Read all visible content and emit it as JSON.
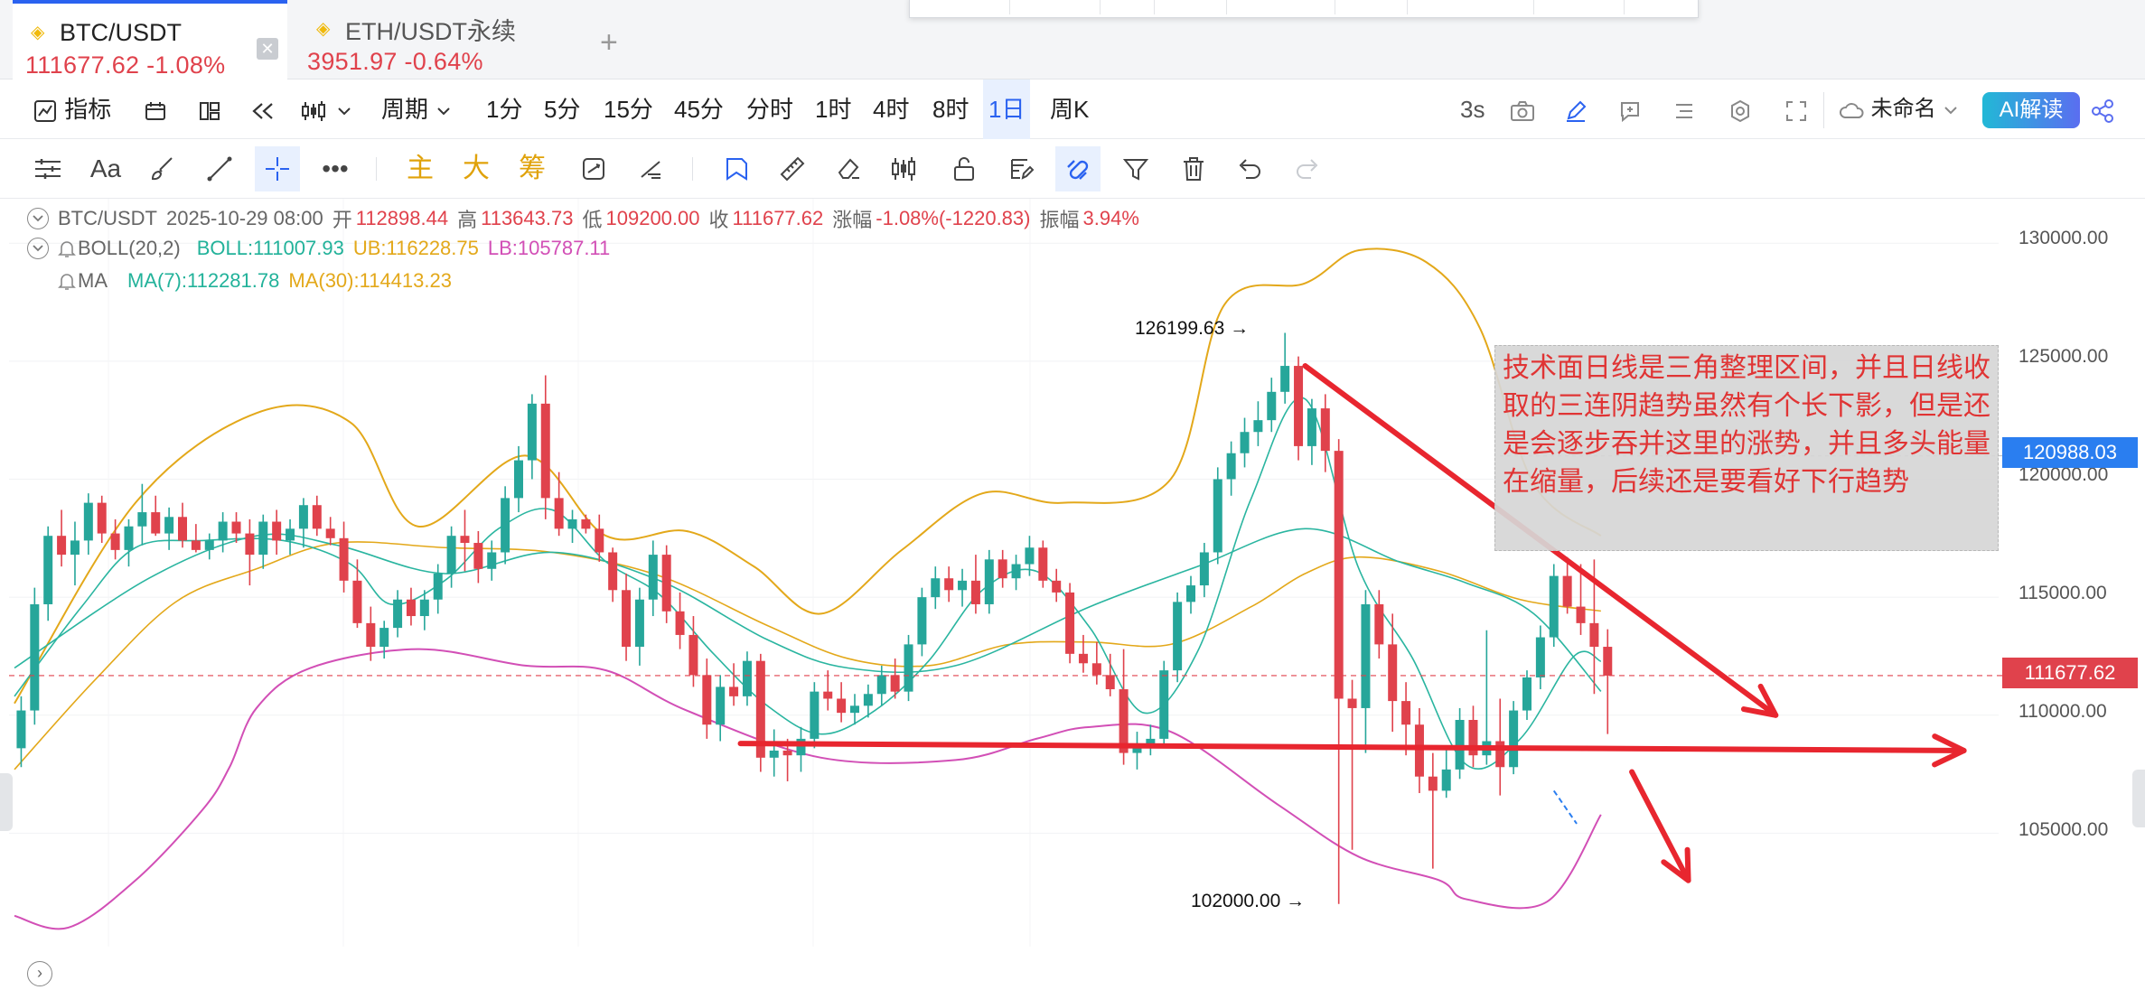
{
  "tabs": [
    {
      "symbol": "BTC/USDT",
      "quote": "111677.62 -1.08%",
      "active": true
    },
    {
      "symbol": "ETH/USDT永续",
      "quote": "3951.97 -0.64%",
      "active": false
    }
  ],
  "toolbar1": {
    "indicator": "指标",
    "period": "周期",
    "intervals": [
      "1分",
      "5分",
      "15分",
      "45分",
      "分时",
      "1时",
      "4时",
      "8时",
      "1日",
      "周K"
    ],
    "active_interval": "1日",
    "refresh": "3s",
    "layout_name": "未命名",
    "ai_button": "AI解读"
  },
  "toolbar2": {
    "text_tools": [
      "主",
      "大",
      "筹"
    ]
  },
  "legend": {
    "symbol": "BTC/USDT",
    "datetime": "2025-10-29 08:00",
    "open_label": "开",
    "open": "112898.44",
    "high_label": "高",
    "high": "113643.73",
    "low_label": "低",
    "low": "109200.00",
    "close_label": "收",
    "close": "111677.62",
    "change_label": "涨幅",
    "change": "-1.08%(-1220.83)",
    "amp_label": "振幅",
    "amp": "3.94%",
    "boll_name": "BOLL(20,2)",
    "boll_mid": "BOLL:111007.93",
    "boll_ub": "UB:116228.75",
    "boll_lb": "LB:105787.11",
    "ma_name": "MA",
    "ma7": "MA(7):112281.78",
    "ma30": "MA(30):114413.23"
  },
  "price_axis": {
    "labels": [
      "130000.00",
      "125000.00",
      "120000.00",
      "115000.00",
      "110000.00",
      "105000.00"
    ],
    "crosshair_price": "120988.03",
    "last_price": "111677.62"
  },
  "annotations": {
    "high_label": "126199.63",
    "low_label": "102000.00",
    "note": "技术面日线是三角整理区间，并且日线收取的三连阴趋势虽然有个长下影，但是还是会逐步吞并这里的涨势，并且多头能量在缩量，后续还是要看好下行趋势"
  },
  "colors": {
    "up": "#26a69a",
    "down": "#e0424c",
    "boll_upper": "#e3a81a",
    "boll_mid": "#2ab5a0",
    "boll_lower": "#d24fb6",
    "drawing": "#e8262f",
    "accent": "#2a62f0",
    "crosshair_tag": "#2a7ef0"
  },
  "chart_data": {
    "type": "candlestick",
    "y_range": [
      100500,
      131500
    ],
    "candles": [
      {
        "o": 108600,
        "h": 110800,
        "l": 107800,
        "c": 110200
      },
      {
        "o": 110200,
        "h": 115400,
        "l": 109600,
        "c": 114700
      },
      {
        "o": 114700,
        "h": 118000,
        "l": 114000,
        "c": 117600
      },
      {
        "o": 117600,
        "h": 118700,
        "l": 116300,
        "c": 116800
      },
      {
        "o": 116800,
        "h": 118200,
        "l": 115500,
        "c": 117400
      },
      {
        "o": 117400,
        "h": 119400,
        "l": 116800,
        "c": 119000
      },
      {
        "o": 119000,
        "h": 119300,
        "l": 117300,
        "c": 117700
      },
      {
        "o": 117700,
        "h": 118300,
        "l": 116600,
        "c": 117000
      },
      {
        "o": 117000,
        "h": 118300,
        "l": 116300,
        "c": 118000
      },
      {
        "o": 118000,
        "h": 119800,
        "l": 117200,
        "c": 118600
      },
      {
        "o": 118600,
        "h": 119300,
        "l": 117600,
        "c": 117700
      },
      {
        "o": 117700,
        "h": 118800,
        "l": 117000,
        "c": 118400
      },
      {
        "o": 118400,
        "h": 119000,
        "l": 117100,
        "c": 117400
      },
      {
        "o": 117400,
        "h": 118100,
        "l": 116900,
        "c": 117000
      },
      {
        "o": 117000,
        "h": 117700,
        "l": 116600,
        "c": 117400
      },
      {
        "o": 117400,
        "h": 118600,
        "l": 116900,
        "c": 118200
      },
      {
        "o": 118200,
        "h": 118600,
        "l": 117300,
        "c": 117700
      },
      {
        "o": 117700,
        "h": 118300,
        "l": 115500,
        "c": 116800
      },
      {
        "o": 116800,
        "h": 118500,
        "l": 116200,
        "c": 118200
      },
      {
        "o": 118200,
        "h": 118700,
        "l": 116800,
        "c": 117400
      },
      {
        "o": 117400,
        "h": 118300,
        "l": 116800,
        "c": 117900
      },
      {
        "o": 117900,
        "h": 119200,
        "l": 117100,
        "c": 118900
      },
      {
        "o": 118900,
        "h": 119300,
        "l": 117600,
        "c": 117900
      },
      {
        "o": 117900,
        "h": 118400,
        "l": 117200,
        "c": 117500
      },
      {
        "o": 117500,
        "h": 118200,
        "l": 115200,
        "c": 115700
      },
      {
        "o": 115700,
        "h": 116600,
        "l": 113700,
        "c": 113900
      },
      {
        "o": 113900,
        "h": 114600,
        "l": 112300,
        "c": 112900
      },
      {
        "o": 112900,
        "h": 114000,
        "l": 112400,
        "c": 113700
      },
      {
        "o": 113700,
        "h": 115300,
        "l": 113300,
        "c": 114900
      },
      {
        "o": 114900,
        "h": 115400,
        "l": 113800,
        "c": 114200
      },
      {
        "o": 114200,
        "h": 115300,
        "l": 113600,
        "c": 114900
      },
      {
        "o": 114900,
        "h": 116400,
        "l": 114300,
        "c": 116000
      },
      {
        "o": 116000,
        "h": 118000,
        "l": 115400,
        "c": 117600
      },
      {
        "o": 117600,
        "h": 118700,
        "l": 116100,
        "c": 117300
      },
      {
        "o": 117300,
        "h": 117800,
        "l": 115600,
        "c": 116200
      },
      {
        "o": 116200,
        "h": 117400,
        "l": 115700,
        "c": 116900
      },
      {
        "o": 116900,
        "h": 119700,
        "l": 116400,
        "c": 119200
      },
      {
        "o": 119200,
        "h": 121400,
        "l": 118600,
        "c": 120800
      },
      {
        "o": 120800,
        "h": 123600,
        "l": 120000,
        "c": 123200
      },
      {
        "o": 123200,
        "h": 124400,
        "l": 118300,
        "c": 119200
      },
      {
        "o": 119200,
        "h": 120300,
        "l": 117600,
        "c": 117900
      },
      {
        "o": 117900,
        "h": 118700,
        "l": 117300,
        "c": 118300
      },
      {
        "o": 118300,
        "h": 118500,
        "l": 117700,
        "c": 117900
      },
      {
        "o": 117900,
        "h": 118500,
        "l": 116500,
        "c": 116900
      },
      {
        "o": 116900,
        "h": 117100,
        "l": 114800,
        "c": 115300
      },
      {
        "o": 115300,
        "h": 116000,
        "l": 112300,
        "c": 112900
      },
      {
        "o": 112900,
        "h": 115400,
        "l": 112100,
        "c": 114900
      },
      {
        "o": 114900,
        "h": 117400,
        "l": 114200,
        "c": 116800
      },
      {
        "o": 116800,
        "h": 117200,
        "l": 113900,
        "c": 114400
      },
      {
        "o": 114400,
        "h": 115200,
        "l": 112800,
        "c": 113400
      },
      {
        "o": 113400,
        "h": 114200,
        "l": 111200,
        "c": 111700
      },
      {
        "o": 111700,
        "h": 112400,
        "l": 109000,
        "c": 109600
      },
      {
        "o": 109600,
        "h": 111700,
        "l": 108900,
        "c": 111200
      },
      {
        "o": 111200,
        "h": 112200,
        "l": 110400,
        "c": 110800
      },
      {
        "o": 110800,
        "h": 112700,
        "l": 110400,
        "c": 112300
      },
      {
        "o": 112300,
        "h": 112600,
        "l": 107600,
        "c": 108200
      },
      {
        "o": 108200,
        "h": 109400,
        "l": 107400,
        "c": 108500
      },
      {
        "o": 108500,
        "h": 109000,
        "l": 107200,
        "c": 108300
      },
      {
        "o": 108300,
        "h": 109500,
        "l": 107600,
        "c": 109000
      },
      {
        "o": 109000,
        "h": 111400,
        "l": 108600,
        "c": 111000
      },
      {
        "o": 111000,
        "h": 111900,
        "l": 110200,
        "c": 110700
      },
      {
        "o": 110700,
        "h": 111400,
        "l": 109700,
        "c": 110100
      },
      {
        "o": 110100,
        "h": 110900,
        "l": 109600,
        "c": 110400
      },
      {
        "o": 110400,
        "h": 111300,
        "l": 109900,
        "c": 110900
      },
      {
        "o": 110900,
        "h": 112100,
        "l": 110400,
        "c": 111700
      },
      {
        "o": 111700,
        "h": 112400,
        "l": 110700,
        "c": 111000
      },
      {
        "o": 111000,
        "h": 113400,
        "l": 110600,
        "c": 113000
      },
      {
        "o": 113000,
        "h": 115400,
        "l": 112500,
        "c": 115000
      },
      {
        "o": 115000,
        "h": 116300,
        "l": 114500,
        "c": 115800
      },
      {
        "o": 115800,
        "h": 116300,
        "l": 114800,
        "c": 115300
      },
      {
        "o": 115300,
        "h": 116200,
        "l": 114600,
        "c": 115700
      },
      {
        "o": 115700,
        "h": 116800,
        "l": 114300,
        "c": 114700
      },
      {
        "o": 114700,
        "h": 117000,
        "l": 114300,
        "c": 116600
      },
      {
        "o": 116600,
        "h": 117000,
        "l": 115400,
        "c": 115800
      },
      {
        "o": 115800,
        "h": 116800,
        "l": 115300,
        "c": 116400
      },
      {
        "o": 116400,
        "h": 117600,
        "l": 115900,
        "c": 117100
      },
      {
        "o": 117100,
        "h": 117400,
        "l": 115400,
        "c": 115700
      },
      {
        "o": 115700,
        "h": 116200,
        "l": 114800,
        "c": 115200
      },
      {
        "o": 115200,
        "h": 115600,
        "l": 112200,
        "c": 112600
      },
      {
        "o": 112600,
        "h": 113400,
        "l": 111800,
        "c": 112200
      },
      {
        "o": 112200,
        "h": 113100,
        "l": 111300,
        "c": 111700
      },
      {
        "o": 111700,
        "h": 112600,
        "l": 110800,
        "c": 111100
      },
      {
        "o": 111100,
        "h": 112800,
        "l": 107900,
        "c": 108400
      },
      {
        "o": 108400,
        "h": 109300,
        "l": 107700,
        "c": 108800
      },
      {
        "o": 108800,
        "h": 109600,
        "l": 108300,
        "c": 109000
      },
      {
        "o": 109000,
        "h": 112300,
        "l": 108600,
        "c": 111900
      },
      {
        "o": 111900,
        "h": 115200,
        "l": 111400,
        "c": 114800
      },
      {
        "o": 114800,
        "h": 115900,
        "l": 114300,
        "c": 115500
      },
      {
        "o": 115500,
        "h": 117300,
        "l": 115000,
        "c": 116900
      },
      {
        "o": 116900,
        "h": 120500,
        "l": 116400,
        "c": 120000
      },
      {
        "o": 120000,
        "h": 121600,
        "l": 119300,
        "c": 121100
      },
      {
        "o": 121100,
        "h": 122600,
        "l": 120500,
        "c": 122000
      },
      {
        "o": 122000,
        "h": 123300,
        "l": 121400,
        "c": 122500
      },
      {
        "o": 122500,
        "h": 124300,
        "l": 122000,
        "c": 123700
      },
      {
        "o": 123700,
        "h": 126199.63,
        "l": 123200,
        "c": 124800
      },
      {
        "o": 124800,
        "h": 125200,
        "l": 120800,
        "c": 121400
      },
      {
        "o": 121400,
        "h": 123400,
        "l": 120600,
        "c": 123000
      },
      {
        "o": 123000,
        "h": 123600,
        "l": 120300,
        "c": 121200
      },
      {
        "o": 121200,
        "h": 121700,
        "l": 102000,
        "c": 110700
      },
      {
        "o": 110700,
        "h": 111500,
        "l": 104300,
        "c": 110300
      },
      {
        "o": 110300,
        "h": 115300,
        "l": 108400,
        "c": 114700
      },
      {
        "o": 114700,
        "h": 115300,
        "l": 112400,
        "c": 113000
      },
      {
        "o": 113000,
        "h": 114300,
        "l": 109300,
        "c": 110600
      },
      {
        "o": 110600,
        "h": 111400,
        "l": 108300,
        "c": 109600
      },
      {
        "o": 109600,
        "h": 110300,
        "l": 106700,
        "c": 107400
      },
      {
        "o": 107400,
        "h": 108400,
        "l": 103500,
        "c": 106800
      },
      {
        "o": 106800,
        "h": 108600,
        "l": 106500,
        "c": 107700
      },
      {
        "o": 107700,
        "h": 110300,
        "l": 107300,
        "c": 109800
      },
      {
        "o": 109800,
        "h": 110400,
        "l": 107800,
        "c": 108300
      },
      {
        "o": 108300,
        "h": 113600,
        "l": 107900,
        "c": 108900
      },
      {
        "o": 108900,
        "h": 110700,
        "l": 106600,
        "c": 107800
      },
      {
        "o": 107800,
        "h": 110600,
        "l": 107500,
        "c": 110200
      },
      {
        "o": 110200,
        "h": 111900,
        "l": 109800,
        "c": 111600
      },
      {
        "o": 111600,
        "h": 113800,
        "l": 111100,
        "c": 113300
      },
      {
        "o": 113300,
        "h": 116400,
        "l": 112900,
        "c": 115900
      },
      {
        "o": 115900,
        "h": 116700,
        "l": 114300,
        "c": 114600
      },
      {
        "o": 114600,
        "h": 116400,
        "l": 113400,
        "c": 113900
      },
      {
        "o": 113900,
        "h": 116600,
        "l": 110900,
        "c": 112898.44
      },
      {
        "o": 112898.44,
        "h": 113643.73,
        "l": 109200,
        "c": 111677.62
      }
    ],
    "boll_upper": [
      [
        0,
        110500
      ],
      [
        9,
        119000
      ],
      [
        18,
        122800
      ],
      [
        25,
        122400
      ],
      [
        30,
        118000
      ],
      [
        38,
        121000
      ],
      [
        44,
        117600
      ],
      [
        50,
        117800
      ],
      [
        55,
        116300
      ],
      [
        60,
        114300
      ],
      [
        66,
        117000
      ],
      [
        72,
        119400
      ],
      [
        78,
        119000
      ],
      [
        86,
        120000
      ],
      [
        90,
        127400
      ],
      [
        96,
        128300
      ],
      [
        100,
        129700
      ],
      [
        105,
        129200
      ],
      [
        109,
        126400
      ],
      [
        113,
        119800
      ],
      [
        118,
        117600
      ]
    ],
    "boll_mid": [
      [
        0,
        112000
      ],
      [
        10,
        115800
      ],
      [
        18,
        117600
      ],
      [
        24,
        117200
      ],
      [
        32,
        116000
      ],
      [
        40,
        116900
      ],
      [
        48,
        115700
      ],
      [
        56,
        113200
      ],
      [
        62,
        112000
      ],
      [
        70,
        112100
      ],
      [
        80,
        114600
      ],
      [
        88,
        116300
      ],
      [
        96,
        117900
      ],
      [
        103,
        116500
      ],
      [
        108,
        115600
      ],
      [
        113,
        114300
      ],
      [
        118,
        111007.93
      ]
    ],
    "boll_lower": [
      [
        0,
        101500
      ],
      [
        4,
        101000
      ],
      [
        9,
        103000
      ],
      [
        14,
        106000
      ],
      [
        16,
        107800
      ],
      [
        18,
        110300
      ],
      [
        22,
        112000
      ],
      [
        30,
        112800
      ],
      [
        38,
        112100
      ],
      [
        44,
        111900
      ],
      [
        50,
        110200
      ],
      [
        60,
        108200
      ],
      [
        70,
        108100
      ],
      [
        76,
        109000
      ],
      [
        80,
        109500
      ],
      [
        86,
        109300
      ],
      [
        94,
        106200
      ],
      [
        100,
        104000
      ],
      [
        106,
        103000
      ],
      [
        108,
        102200
      ],
      [
        114,
        102100
      ],
      [
        118,
        105787.11
      ]
    ],
    "ma7": [
      [
        0,
        110800
      ],
      [
        5,
        114600
      ],
      [
        9,
        117100
      ],
      [
        14,
        117400
      ],
      [
        20,
        117400
      ],
      [
        25,
        116400
      ],
      [
        28,
        114700
      ],
      [
        32,
        115700
      ],
      [
        36,
        117900
      ],
      [
        40,
        118700
      ],
      [
        44,
        116500
      ],
      [
        48,
        115100
      ],
      [
        52,
        112600
      ],
      [
        56,
        110400
      ],
      [
        60,
        109200
      ],
      [
        64,
        110200
      ],
      [
        68,
        112300
      ],
      [
        72,
        115300
      ],
      [
        76,
        116100
      ],
      [
        80,
        113700
      ],
      [
        84,
        110100
      ],
      [
        88,
        112700
      ],
      [
        92,
        119200
      ],
      [
        96,
        123400
      ],
      [
        100,
        116200
      ],
      [
        104,
        112400
      ],
      [
        108,
        107900
      ],
      [
        112,
        109000
      ],
      [
        116,
        112500
      ],
      [
        118,
        112281.78
      ]
    ],
    "ma30": [
      [
        0,
        107700
      ],
      [
        6,
        111500
      ],
      [
        12,
        114800
      ],
      [
        18,
        116200
      ],
      [
        24,
        117300
      ],
      [
        32,
        117100
      ],
      [
        40,
        116900
      ],
      [
        48,
        115900
      ],
      [
        56,
        113800
      ],
      [
        62,
        112400
      ],
      [
        68,
        112100
      ],
      [
        74,
        113000
      ],
      [
        80,
        113100
      ],
      [
        86,
        113000
      ],
      [
        92,
        114600
      ],
      [
        96,
        116000
      ],
      [
        100,
        116700
      ],
      [
        106,
        116100
      ],
      [
        112,
        114900
      ],
      [
        118,
        114413.23
      ]
    ],
    "drawings": {
      "descending_line": [
        [
          124800,
          96
        ],
        [
          110000,
          131
        ]
      ],
      "support_line": [
        [
          108800,
          54
        ],
        [
          108500,
          145
        ]
      ]
    }
  }
}
